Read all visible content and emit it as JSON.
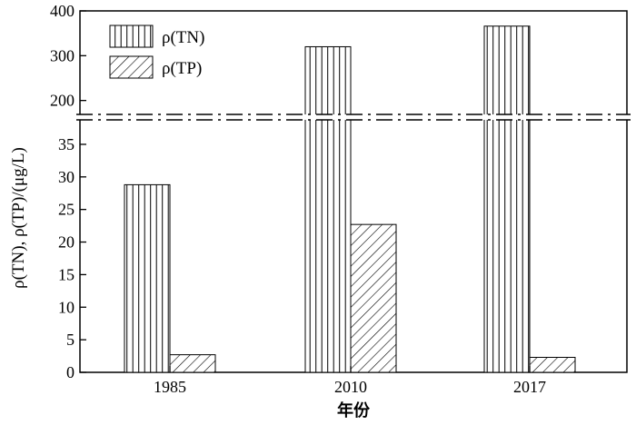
{
  "chart_data": {
    "type": "bar",
    "x_label": "年份",
    "y_label": "ρ(TN), ρ(TP)/(μg/L)",
    "categories": [
      "1985",
      "2010",
      "2017"
    ],
    "series": [
      {
        "name": "ρ(TN)",
        "values": [
          28.8,
          320,
          366
        ],
        "pattern": "vertical-lines"
      },
      {
        "name": "ρ(TP)",
        "values": [
          2.7,
          22.7,
          2.3
        ],
        "pattern": "diagonal-hatch"
      }
    ],
    "y_axis": {
      "broken": true,
      "lower_range": [
        0,
        37.5
      ],
      "lower_ticks": [
        "0",
        "5",
        "10",
        "15",
        "20",
        "25",
        "30",
        "35"
      ],
      "upper_range": [
        175,
        400
      ],
      "upper_ticks": [
        "200",
        "300",
        "400"
      ]
    },
    "legend": {
      "placement": "top-left"
    },
    "grid": false
  }
}
